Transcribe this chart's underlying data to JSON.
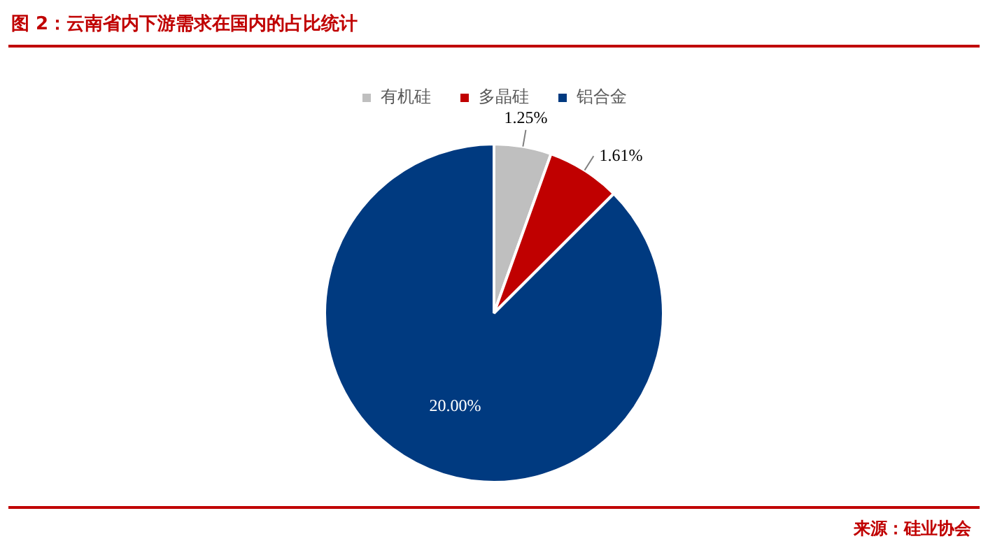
{
  "chart_data": {
    "type": "pie",
    "title": "图 2：云南省内下游需求在国内的占比统计",
    "categories": [
      "有机硅",
      "多晶硅",
      "铝合金"
    ],
    "values": [
      1.25,
      1.61,
      20.0
    ],
    "value_labels": [
      "1.25%",
      "1.61%",
      "20.00%"
    ],
    "colors": [
      "#bfbfbf",
      "#c00000",
      "#003a80"
    ],
    "legend": "top",
    "annotations": [
      "来源：硅业协会"
    ]
  }
}
